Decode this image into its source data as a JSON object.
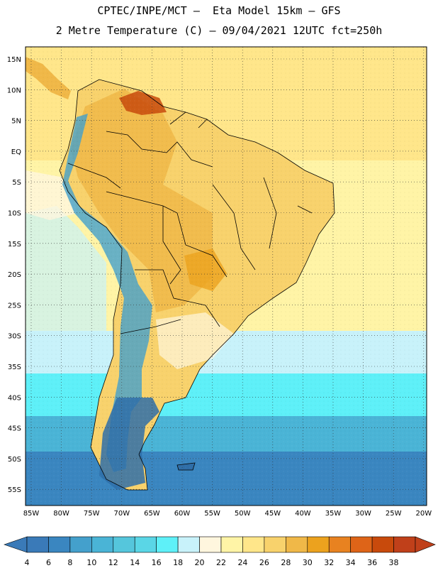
{
  "header": {
    "line1": "CPTEC/INPE/MCT –  Eta Model 15km – GFS",
    "line2": "2 Metre Temperature (C) – 09/04/2021 12UTC fct=250h"
  },
  "axes": {
    "lat_labels": [
      "15N",
      "10N",
      "5N",
      "EQ",
      "5S",
      "10S",
      "15S",
      "20S",
      "25S",
      "30S",
      "35S",
      "40S",
      "45S",
      "50S",
      "55S"
    ],
    "lon_labels": [
      "85W",
      "80W",
      "75W",
      "70W",
      "65W",
      "60W",
      "55W",
      "50W",
      "45W",
      "40W",
      "35W",
      "30W",
      "25W",
      "20W"
    ]
  },
  "colorbar": {
    "labels": [
      "4",
      "6",
      "8",
      "10",
      "12",
      "14",
      "16",
      "18",
      "20",
      "22",
      "24",
      "26",
      "28",
      "30",
      "32",
      "34",
      "36",
      "38"
    ],
    "colors": [
      "#3a7ab8",
      "#3a86c0",
      "#44a0cc",
      "#4ab4d6",
      "#55c6dc",
      "#5ad6e6",
      "#5ef0f8",
      "#c8f2fa",
      "#fff6de",
      "#fff4a6",
      "#ffe68a",
      "#f8d26c",
      "#f0b848",
      "#eca21e",
      "#e88220",
      "#de6418",
      "#c84a0c",
      "#c0401a"
    ]
  },
  "map_colors": {
    "ocean_north": "#ffe68a",
    "ocean_mid": "#fff4a6",
    "ocean_cool": "#c8f2fa",
    "ocean_cold": "#5ef0f8",
    "ocean_colder": "#4ab4d6",
    "ocean_coldest": "#3a86c0",
    "land_hot": "#f0b848",
    "land_warm": "#f8d26c",
    "andes": "#44a0cc",
    "patagonia": "#2f6ea8",
    "borders": "#000000"
  }
}
